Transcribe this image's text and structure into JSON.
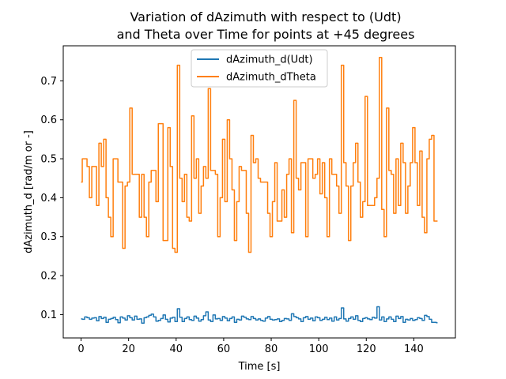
{
  "chart_data": {
    "type": "line",
    "title_lines": [
      "Variation of dAzimuth with respect to (Udt)",
      "and Theta over Time for points at +45 degrees"
    ],
    "xlabel": "Time [s]",
    "ylabel": "dAzimuth_d [rad/m or -]",
    "xlim": [
      -7.5,
      157.5
    ],
    "ylim": [
      0.04,
      0.79
    ],
    "xticks": [
      0,
      20,
      40,
      60,
      80,
      100,
      120,
      140
    ],
    "yticks": [
      0.1,
      0.2,
      0.3,
      0.4,
      0.5,
      0.6,
      0.7
    ],
    "grid": false,
    "legend_position": "upper-center",
    "x": [
      0,
      1,
      2,
      3,
      4,
      5,
      6,
      7,
      8,
      9,
      10,
      11,
      12,
      13,
      14,
      15,
      16,
      17,
      18,
      19,
      20,
      21,
      22,
      23,
      24,
      25,
      26,
      27,
      28,
      29,
      30,
      31,
      32,
      33,
      34,
      35,
      36,
      37,
      38,
      39,
      40,
      41,
      42,
      43,
      44,
      45,
      46,
      47,
      48,
      49,
      50,
      51,
      52,
      53,
      54,
      55,
      56,
      57,
      58,
      59,
      60,
      61,
      62,
      63,
      64,
      65,
      66,
      67,
      68,
      69,
      70,
      71,
      72,
      73,
      74,
      75,
      76,
      77,
      78,
      79,
      80,
      81,
      82,
      83,
      84,
      85,
      86,
      87,
      88,
      89,
      90,
      91,
      92,
      93,
      94,
      95,
      96,
      97,
      98,
      99,
      100,
      101,
      102,
      103,
      104,
      105,
      106,
      107,
      108,
      109,
      110,
      111,
      112,
      113,
      114,
      115,
      116,
      117,
      118,
      119,
      120,
      121,
      122,
      123,
      124,
      125,
      126,
      127,
      128,
      129,
      130,
      131,
      132,
      133,
      134,
      135,
      136,
      137,
      138,
      139,
      140,
      141,
      142,
      143,
      144,
      145,
      146,
      147,
      148,
      149,
      150
    ],
    "series": [
      {
        "name": "dAzimuth_d(Udt)",
        "color": "#1f77b4",
        "values": [
          0.089,
          0.088,
          0.094,
          0.092,
          0.088,
          0.091,
          0.092,
          0.084,
          0.095,
          0.09,
          0.093,
          0.08,
          0.088,
          0.09,
          0.093,
          0.087,
          0.079,
          0.094,
          0.091,
          0.086,
          0.097,
          0.092,
          0.086,
          0.096,
          0.088,
          0.089,
          0.078,
          0.092,
          0.094,
          0.098,
          0.101,
          0.094,
          0.083,
          0.085,
          0.09,
          0.099,
          0.088,
          0.081,
          0.091,
          0.093,
          0.082,
          0.115,
          0.093,
          0.082,
          0.09,
          0.094,
          0.087,
          0.085,
          0.096,
          0.091,
          0.083,
          0.087,
          0.097,
          0.107,
          0.086,
          0.082,
          0.099,
          0.089,
          0.09,
          0.085,
          0.095,
          0.091,
          0.084,
          0.09,
          0.094,
          0.08,
          0.088,
          0.086,
          0.096,
          0.093,
          0.089,
          0.087,
          0.095,
          0.09,
          0.086,
          0.089,
          0.085,
          0.083,
          0.091,
          0.095,
          0.088,
          0.086,
          0.087,
          0.089,
          0.082,
          0.085,
          0.09,
          0.089,
          0.085,
          0.102,
          0.095,
          0.092,
          0.089,
          0.082,
          0.092,
          0.095,
          0.088,
          0.091,
          0.084,
          0.094,
          0.092,
          0.085,
          0.088,
          0.093,
          0.087,
          0.091,
          0.083,
          0.094,
          0.086,
          0.09,
          0.117,
          0.089,
          0.083,
          0.09,
          0.094,
          0.088,
          0.097,
          0.085,
          0.082,
          0.09,
          0.092,
          0.089,
          0.087,
          0.093,
          0.091,
          0.12,
          0.086,
          0.094,
          0.082,
          0.089,
          0.094,
          0.088,
          0.082,
          0.096,
          0.09,
          0.095,
          0.08,
          0.088,
          0.086,
          0.09,
          0.085,
          0.087,
          0.092,
          0.09,
          0.085,
          0.098,
          0.095,
          0.088,
          0.08,
          0.08,
          0.079
        ]
      },
      {
        "name": "dAzimuth_dTheta",
        "color": "#ff7f0e",
        "values": [
          0.44,
          0.5,
          0.5,
          0.48,
          0.4,
          0.48,
          0.48,
          0.38,
          0.54,
          0.48,
          0.55,
          0.4,
          0.35,
          0.3,
          0.5,
          0.5,
          0.44,
          0.44,
          0.27,
          0.43,
          0.44,
          0.63,
          0.46,
          0.46,
          0.46,
          0.35,
          0.46,
          0.35,
          0.3,
          0.44,
          0.47,
          0.47,
          0.39,
          0.59,
          0.59,
          0.29,
          0.29,
          0.58,
          0.48,
          0.27,
          0.26,
          0.74,
          0.45,
          0.39,
          0.46,
          0.35,
          0.34,
          0.61,
          0.45,
          0.5,
          0.36,
          0.43,
          0.48,
          0.45,
          0.68,
          0.47,
          0.47,
          0.46,
          0.3,
          0.4,
          0.55,
          0.39,
          0.6,
          0.5,
          0.42,
          0.29,
          0.39,
          0.48,
          0.47,
          0.47,
          0.36,
          0.26,
          0.56,
          0.49,
          0.5,
          0.45,
          0.44,
          0.44,
          0.44,
          0.36,
          0.3,
          0.39,
          0.49,
          0.34,
          0.34,
          0.42,
          0.35,
          0.46,
          0.5,
          0.31,
          0.65,
          0.45,
          0.42,
          0.49,
          0.49,
          0.3,
          0.5,
          0.5,
          0.45,
          0.46,
          0.5,
          0.41,
          0.49,
          0.4,
          0.3,
          0.5,
          0.46,
          0.46,
          0.43,
          0.36,
          0.74,
          0.49,
          0.43,
          0.29,
          0.43,
          0.49,
          0.54,
          0.44,
          0.35,
          0.39,
          0.66,
          0.38,
          0.38,
          0.38,
          0.4,
          0.45,
          0.76,
          0.37,
          0.3,
          0.63,
          0.47,
          0.46,
          0.36,
          0.5,
          0.38,
          0.54,
          0.49,
          0.36,
          0.43,
          0.49,
          0.58,
          0.49,
          0.38,
          0.52,
          0.35,
          0.31,
          0.5,
          0.55,
          0.56,
          0.34,
          0.34
        ]
      }
    ]
  }
}
